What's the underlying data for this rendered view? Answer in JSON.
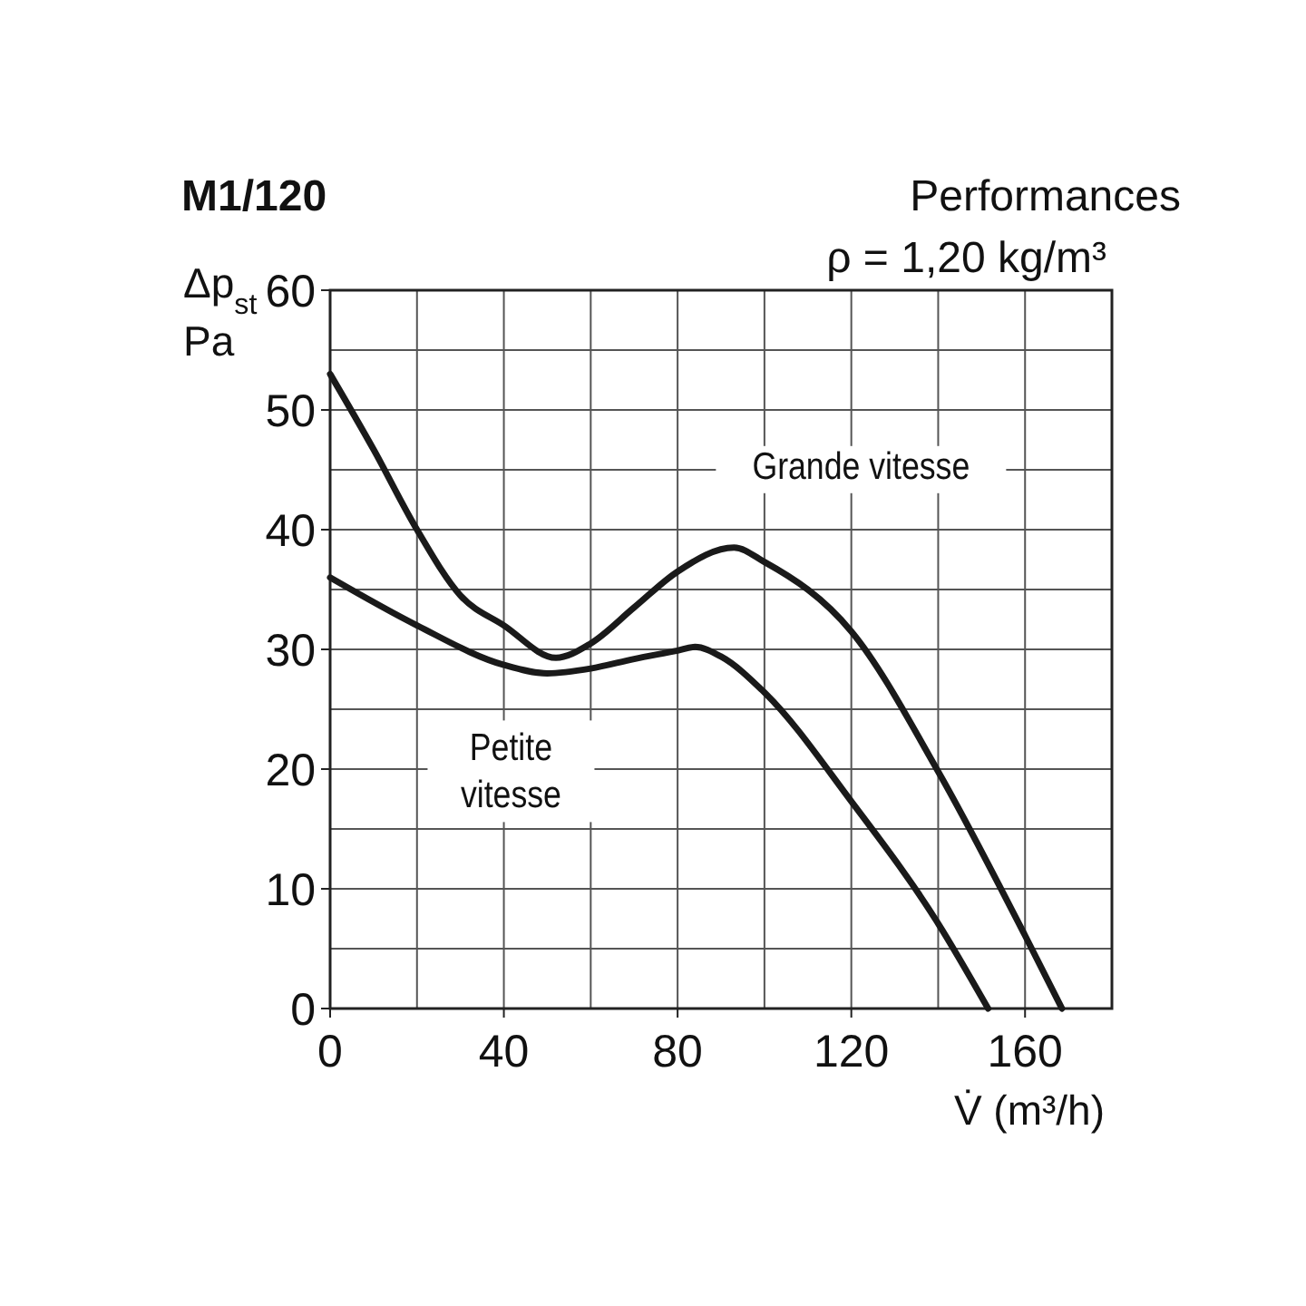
{
  "chart_data": {
    "type": "line",
    "title": "M1/120",
    "subtitle": "Performances\nρ = 1,20 kg/m³",
    "ylabel": "Δp$_{st}$\nPa",
    "xlabel": "V̇ (m³/h)",
    "xlim": [
      0,
      180
    ],
    "ylim": [
      0,
      60
    ],
    "xticks": [
      0,
      {
        "value": 20,
        "label": null
      },
      40,
      {
        "value": 60,
        "label": null
      },
      80,
      {
        "value": 100,
        "label": null
      },
      120,
      {
        "value": 140,
        "label": null
      },
      160,
      {
        "value": 180,
        "label": null
      }
    ],
    "yticks": [
      0,
      {
        "value": 5,
        "label": null
      },
      10,
      {
        "value": 15,
        "label": null
      },
      20,
      {
        "value": 25,
        "label": null
      },
      30,
      {
        "value": 35,
        "label": null
      },
      40,
      {
        "value": 45,
        "label": null
      },
      50,
      {
        "value": 55,
        "label": null
      },
      60
    ],
    "grid": true,
    "marker": "none",
    "line_style": "solid",
    "series": [
      {
        "name": "Grande vitesse",
        "color": "#1a1a1a",
        "x": [
          0,
          10,
          20,
          30,
          40,
          52,
          60,
          70,
          80,
          93,
          100,
          120,
          140,
          160,
          168.5
        ],
        "values": [
          53,
          46.7,
          40,
          34.5,
          32,
          29.3,
          30.5,
          33.5,
          36.5,
          38.5,
          37.3,
          31.5,
          19.8,
          6.1,
          0
        ]
      },
      {
        "name": "Petite vitesse",
        "color": "#1a1a1a",
        "x": [
          0,
          20,
          40,
          50,
          60,
          70,
          80,
          84,
          90,
          100,
          120,
          140,
          151.5
        ],
        "values": [
          36,
          32,
          28.7,
          28,
          28.4,
          29.2,
          29.9,
          30.2,
          29.4,
          26.4,
          17.3,
          7.1,
          0
        ]
      }
    ]
  }
}
